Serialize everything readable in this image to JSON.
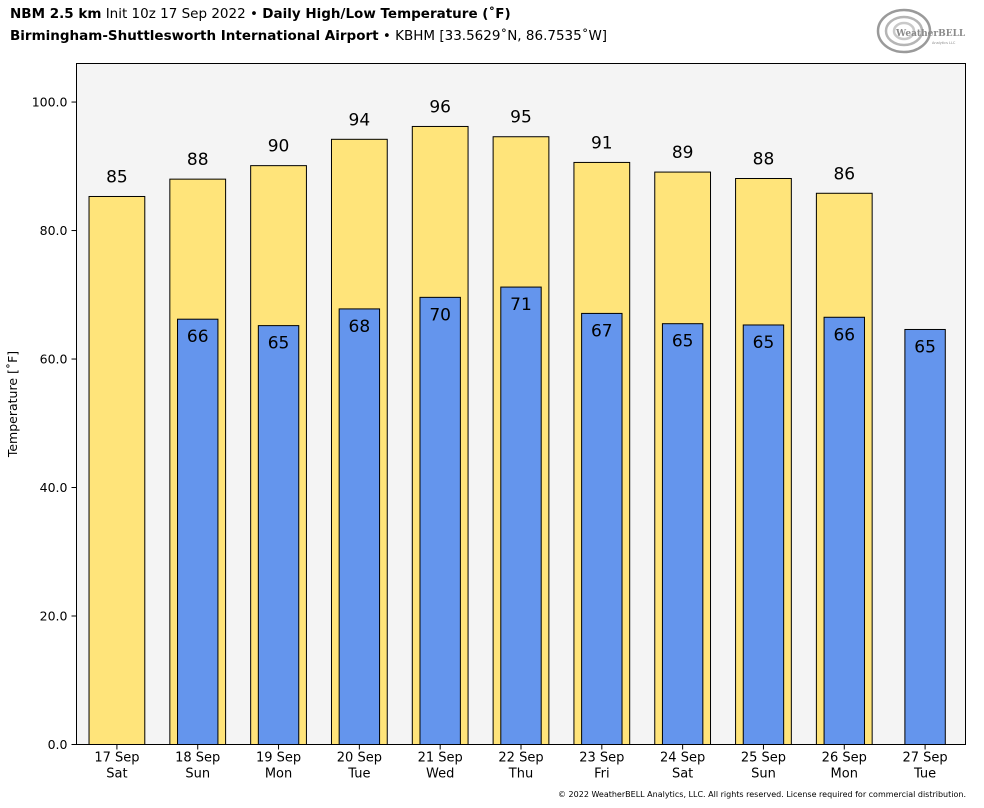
{
  "header": {
    "model": "NBM 2.5 km",
    "init": "Init 10z 17 Sep 2022",
    "separator": "•",
    "product": "Daily High/Low Temperature (˚F)",
    "location": "Birmingham-Shuttlesworth International Airport",
    "station": "KBHM [33.5629˚N, 86.7535˚W]"
  },
  "logo": {
    "text": "WeatherBELL",
    "subtext": "Analytics LLC",
    "icon": "weatherbell-swirl-logo"
  },
  "footer": {
    "copyright": "© 2022 WeatherBELL Analytics, LLC. All rights reserved. License required for commercial distribution."
  },
  "colors": {
    "high": "#FFE47A",
    "low": "#6495ED",
    "plot_bg": "#F4F4F4"
  },
  "chart_data": {
    "type": "bar",
    "ylabel": "Temperature [˚F]",
    "xlabel": "",
    "ylim": [
      0,
      106
    ],
    "yticks": [
      "0.0",
      "20.0",
      "40.0",
      "60.0",
      "80.0",
      "100.0"
    ],
    "grid": false,
    "categories": [
      "17 Sep\nSat",
      "18 Sep\nSun",
      "19 Sep\nMon",
      "20 Sep\nTue",
      "21 Sep\nWed",
      "22 Sep\nThu",
      "23 Sep\nFri",
      "24 Sep\nSat",
      "25 Sep\nSun",
      "26 Sep\nMon",
      "27 Sep\nTue"
    ],
    "series": [
      {
        "values": [
          85.3,
          88.0,
          90.1,
          94.2,
          96.2,
          94.6,
          90.6,
          89.1,
          88.1,
          85.8,
          null
        ],
        "labels": [
          "85",
          "88",
          "90",
          "94",
          "96",
          "95",
          "91",
          "89",
          "88",
          "86",
          ""
        ]
      },
      {
        "values": [
          null,
          66.2,
          65.2,
          67.8,
          69.6,
          71.2,
          67.1,
          65.5,
          65.3,
          66.5,
          64.6
        ],
        "labels": [
          "",
          "66",
          "65",
          "68",
          "70",
          "71",
          "67",
          "65",
          "65",
          "66",
          "65"
        ]
      }
    ]
  }
}
